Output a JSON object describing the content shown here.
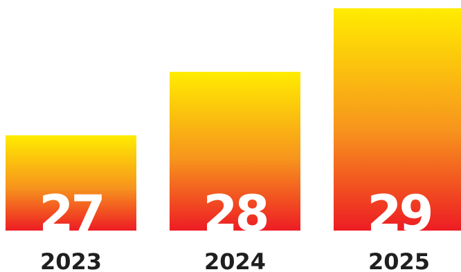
{
  "chart_data": {
    "type": "bar",
    "categories": [
      "2023",
      "2024",
      "2025"
    ],
    "values": [
      27,
      28,
      29
    ],
    "data_labels": [
      "27",
      "28",
      "29"
    ],
    "title": "",
    "xlabel": "",
    "ylabel": "",
    "ylim": [
      26,
      29
    ],
    "grid": false,
    "legend": "none",
    "colors": {
      "gradient_top": "#ffec00",
      "gradient_mid": "#f7941d",
      "gradient_bottom": "#ed1c24",
      "data_label": "#ffffff",
      "category_label": "#1f1f1f"
    }
  }
}
